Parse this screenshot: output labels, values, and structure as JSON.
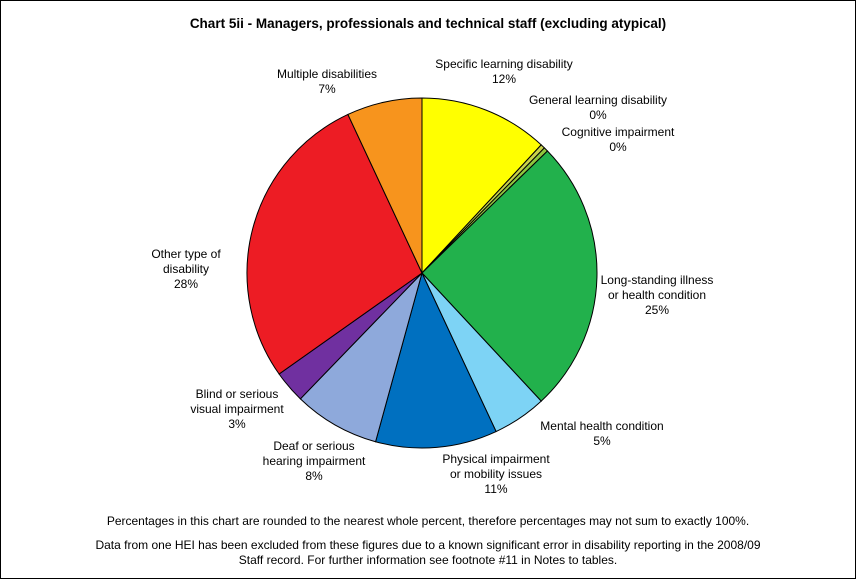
{
  "chart_data": {
    "type": "pie",
    "title": "Chart 5ii - Managers, professionals and technical staff (excluding atypical)",
    "start_angle_deg": 0,
    "direction": "clockwise",
    "slices": [
      {
        "label": [
          "Specific learning disability"
        ],
        "percent_label": "12%",
        "value": 12,
        "color": "#FFFF00"
      },
      {
        "label": [
          "General learning disability"
        ],
        "percent_label": "0%",
        "value": 0.4,
        "color": "#C8D24A"
      },
      {
        "label": [
          "Cognitive impairment"
        ],
        "percent_label": "0%",
        "value": 0.4,
        "color": "#8FC73E"
      },
      {
        "label": [
          "Long-standing illness",
          "or health condition"
        ],
        "percent_label": "25%",
        "value": 25.5,
        "color": "#22B14C"
      },
      {
        "label": [
          "Mental health condition"
        ],
        "percent_label": "5%",
        "value": 5,
        "color": "#7DD3F5"
      },
      {
        "label": [
          "Physical impairment",
          "or mobility issues"
        ],
        "percent_label": "11%",
        "value": 11.3,
        "color": "#0070C0"
      },
      {
        "label": [
          "Deaf or serious",
          "hearing impairment"
        ],
        "percent_label": "8%",
        "value": 8,
        "color": "#8EA9DB"
      },
      {
        "label": [
          "Blind or serious",
          "visual impairment"
        ],
        "percent_label": "3%",
        "value": 3,
        "color": "#7030A0"
      },
      {
        "label": [
          "Other type of",
          "disability"
        ],
        "percent_label": "28%",
        "value": 28,
        "color": "#ED1C24"
      },
      {
        "label": [
          "Multiple disabilities"
        ],
        "percent_label": "7%",
        "value": 7,
        "color": "#F7941D"
      }
    ]
  },
  "footnotes": [
    [
      "Percentages in this chart are rounded to the nearest whole percent, therefore percentages may not sum to exactly 100%."
    ],
    [
      "Data from one HEI has been excluded from these figures due to a known significant error in disability reporting in the 2008/09",
      "Staff record. For further information see footnote #11 in Notes to tables."
    ]
  ]
}
